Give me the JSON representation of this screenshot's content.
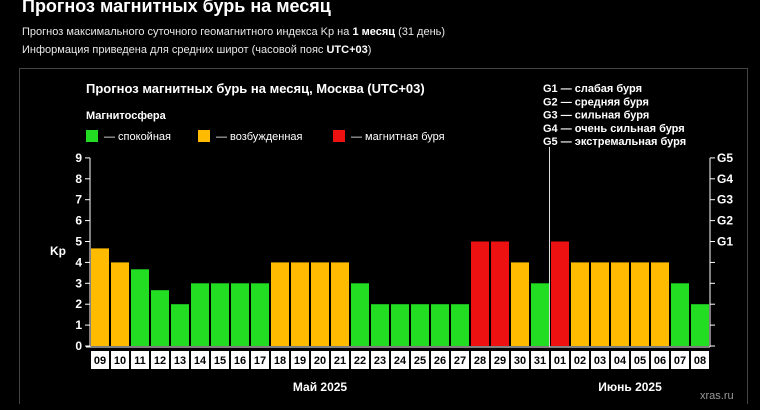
{
  "header": {
    "title": "Прогноз магнитных бурь на месяц",
    "line1": {
      "prefix": "Прогноз максимального суточного геомагнитного индекса Kp на",
      "bold": "1 месяц",
      "suffix": "(31 день)"
    },
    "line2": {
      "prefix": "Информация приведена для средних широт (часовой пояс",
      "bold": "UTC+03",
      "suffix": ")"
    }
  },
  "chart_data": {
    "type": "bar",
    "title": "Прогноз магнитных бурь на месяц, Москва (UTC+03)",
    "legend_title": "Магнитосфера",
    "legend": [
      {
        "label": "— спокойная",
        "color": "#22dd22"
      },
      {
        "label": "— возбужденная",
        "color": "#ffbb00"
      },
      {
        "label": "— магнитная буря",
        "color": "#ee1111"
      }
    ],
    "g_scale": [
      "G1 — слабая буря",
      "G2 — средняя буря",
      "G3 — сильная буря",
      "G4 — очень сильная буря",
      "G5 — экстремальная буря"
    ],
    "ylabel": "Kp",
    "ylim": [
      0,
      9
    ],
    "yticks": [
      0,
      1,
      2,
      3,
      4,
      5,
      6,
      7,
      8,
      9
    ],
    "right_ticks": [
      {
        "label": "G1",
        "kp": 5
      },
      {
        "label": "G2",
        "kp": 6
      },
      {
        "label": "G3",
        "kp": 7
      },
      {
        "label": "G4",
        "kp": 8
      },
      {
        "label": "G5",
        "kp": 9
      }
    ],
    "categories": [
      "09",
      "10",
      "11",
      "12",
      "13",
      "14",
      "15",
      "16",
      "17",
      "18",
      "19",
      "20",
      "21",
      "22",
      "23",
      "24",
      "25",
      "26",
      "27",
      "28",
      "29",
      "30",
      "31",
      "01",
      "02",
      "03",
      "04",
      "05",
      "06",
      "07",
      "08"
    ],
    "values": [
      4.67,
      4,
      3.67,
      2.67,
      2,
      3,
      3,
      3,
      3,
      4,
      4,
      4,
      4,
      3,
      2,
      2,
      2,
      2,
      2,
      5,
      5,
      4,
      3,
      5,
      4,
      4,
      4,
      4,
      4,
      3,
      2
    ],
    "levels": [
      "yellow",
      "yellow",
      "green",
      "green",
      "green",
      "green",
      "green",
      "green",
      "green",
      "yellow",
      "yellow",
      "yellow",
      "yellow",
      "green",
      "green",
      "green",
      "green",
      "green",
      "green",
      "red",
      "red",
      "yellow",
      "green",
      "red",
      "yellow",
      "yellow",
      "yellow",
      "yellow",
      "yellow",
      "green",
      "green"
    ],
    "months": [
      {
        "label": "Май 2025",
        "first": 0,
        "last": 22
      },
      {
        "label": "Июнь 2025",
        "first": 23,
        "last": 30
      }
    ],
    "colors": {
      "green": "#22dd22",
      "yellow": "#ffbb00",
      "red": "#ee1111"
    },
    "grid": false,
    "watermark": "xras.ru"
  }
}
